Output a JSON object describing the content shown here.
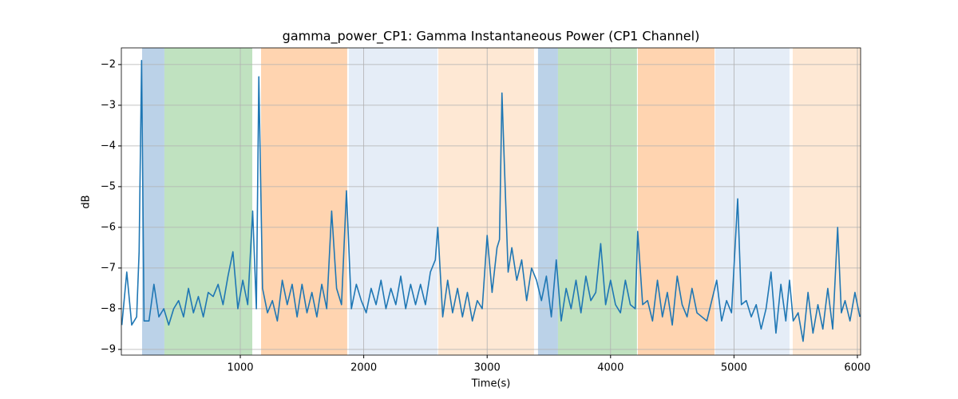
{
  "chart_data": {
    "type": "line",
    "title": "gamma_power_CP1: Gamma Instantaneous Power (CP1 Channel)",
    "xlabel": "Time(s)",
    "ylabel": "dB",
    "xlim": [
      36,
      6026
    ],
    "ylim": [
      -9.14,
      -1.59
    ],
    "xticks": [
      1000,
      2000,
      3000,
      4000,
      5000,
      6000
    ],
    "yticks": [
      {
        "value": -9,
        "label": "−9"
      },
      {
        "value": -8,
        "label": "−8"
      },
      {
        "value": -7,
        "label": "−7"
      },
      {
        "value": -6,
        "label": "−6"
      },
      {
        "value": -5,
        "label": "−5"
      },
      {
        "value": -4,
        "label": "−4"
      },
      {
        "value": -3,
        "label": "−3"
      },
      {
        "value": -2,
        "label": "−2"
      }
    ],
    "grid": true,
    "color": "#1f77b4",
    "spans": [
      {
        "start": 204,
        "end": 385,
        "color": "#bbd2e8"
      },
      {
        "start": 385,
        "end": 1097,
        "color": "#c0e2c0"
      },
      {
        "start": 1168,
        "end": 1866,
        "color": "#ffd4b0"
      },
      {
        "start": 1879,
        "end": 2597,
        "color": "#e5edf7"
      },
      {
        "start": 2604,
        "end": 3380,
        "color": "#fee8d4"
      },
      {
        "start": 3412,
        "end": 3574,
        "color": "#bbd2e8"
      },
      {
        "start": 3574,
        "end": 4214,
        "color": "#c0e2c0"
      },
      {
        "start": 4221,
        "end": 4842,
        "color": "#ffd4b0"
      },
      {
        "start": 4848,
        "end": 5450,
        "color": "#e5edf7"
      },
      {
        "start": 5476,
        "end": 6026,
        "color": "#fee8d4"
      }
    ],
    "x": [
      40,
      80,
      120,
      160,
      180,
      200,
      220,
      260,
      300,
      340,
      380,
      420,
      460,
      500,
      540,
      580,
      620,
      660,
      700,
      740,
      780,
      820,
      860,
      900,
      940,
      980,
      1020,
      1060,
      1100,
      1130,
      1150,
      1180,
      1220,
      1260,
      1300,
      1340,
      1380,
      1420,
      1460,
      1500,
      1540,
      1580,
      1620,
      1660,
      1700,
      1740,
      1780,
      1820,
      1860,
      1900,
      1940,
      1980,
      2020,
      2060,
      2100,
      2140,
      2180,
      2220,
      2260,
      2300,
      2340,
      2380,
      2420,
      2460,
      2500,
      2540,
      2580,
      2600,
      2640,
      2680,
      2720,
      2760,
      2800,
      2840,
      2880,
      2920,
      2960,
      3000,
      3040,
      3080,
      3100,
      3120,
      3140,
      3170,
      3200,
      3240,
      3280,
      3320,
      3360,
      3400,
      3440,
      3480,
      3520,
      3560,
      3600,
      3640,
      3680,
      3720,
      3760,
      3800,
      3840,
      3880,
      3920,
      3960,
      4000,
      4040,
      4080,
      4120,
      4160,
      4200,
      4220,
      4260,
      4300,
      4340,
      4380,
      4420,
      4460,
      4500,
      4540,
      4580,
      4620,
      4660,
      4700,
      4740,
      4780,
      4820,
      4860,
      4900,
      4940,
      4980,
      5030,
      5060,
      5100,
      5140,
      5180,
      5220,
      5260,
      5300,
      5340,
      5380,
      5420,
      5450,
      5480,
      5520,
      5560,
      5600,
      5640,
      5680,
      5720,
      5760,
      5800,
      5840,
      5870,
      5900,
      5940,
      5980,
      6020
    ],
    "values": [
      -8.4,
      -7.1,
      -8.4,
      -8.2,
      -6.6,
      -1.9,
      -8.3,
      -8.3,
      -7.4,
      -8.2,
      -8.0,
      -8.4,
      -8.0,
      -7.8,
      -8.2,
      -7.5,
      -8.1,
      -7.7,
      -8.2,
      -7.6,
      -7.7,
      -7.4,
      -7.9,
      -7.2,
      -6.6,
      -8.0,
      -7.3,
      -7.9,
      -5.6,
      -8.0,
      -2.3,
      -7.5,
      -8.1,
      -7.8,
      -8.3,
      -7.3,
      -7.9,
      -7.4,
      -8.2,
      -7.4,
      -8.1,
      -7.6,
      -8.2,
      -7.4,
      -8.0,
      -5.6,
      -7.5,
      -7.9,
      -5.1,
      -8.0,
      -7.4,
      -7.8,
      -8.1,
      -7.5,
      -7.9,
      -7.3,
      -8.0,
      -7.5,
      -7.9,
      -7.2,
      -8.0,
      -7.4,
      -7.9,
      -7.4,
      -7.9,
      -7.1,
      -6.8,
      -6.0,
      -8.2,
      -7.3,
      -8.1,
      -7.5,
      -8.2,
      -7.6,
      -8.3,
      -7.8,
      -8.0,
      -6.2,
      -7.6,
      -6.5,
      -6.3,
      -2.7,
      -4.5,
      -7.1,
      -6.5,
      -7.3,
      -6.8,
      -7.8,
      -7.0,
      -7.3,
      -7.8,
      -7.2,
      -8.2,
      -6.8,
      -8.3,
      -7.5,
      -8.0,
      -7.3,
      -8.1,
      -7.2,
      -7.8,
      -7.6,
      -6.4,
      -7.9,
      -7.3,
      -7.9,
      -8.1,
      -7.3,
      -7.9,
      -8.0,
      -6.1,
      -7.9,
      -7.8,
      -8.3,
      -7.3,
      -8.2,
      -7.6,
      -8.4,
      -7.2,
      -7.9,
      -8.2,
      -7.5,
      -8.1,
      -8.2,
      -8.3,
      -7.8,
      -7.3,
      -8.3,
      -7.8,
      -8.1,
      -5.3,
      -7.9,
      -7.8,
      -8.2,
      -7.9,
      -8.5,
      -8.0,
      -7.1,
      -8.6,
      -7.4,
      -8.3,
      -7.3,
      -8.3,
      -8.1,
      -8.8,
      -7.6,
      -8.6,
      -7.9,
      -8.5,
      -7.5,
      -8.5,
      -6.0,
      -8.1,
      -7.8,
      -8.3,
      -7.6,
      -8.2
    ]
  }
}
